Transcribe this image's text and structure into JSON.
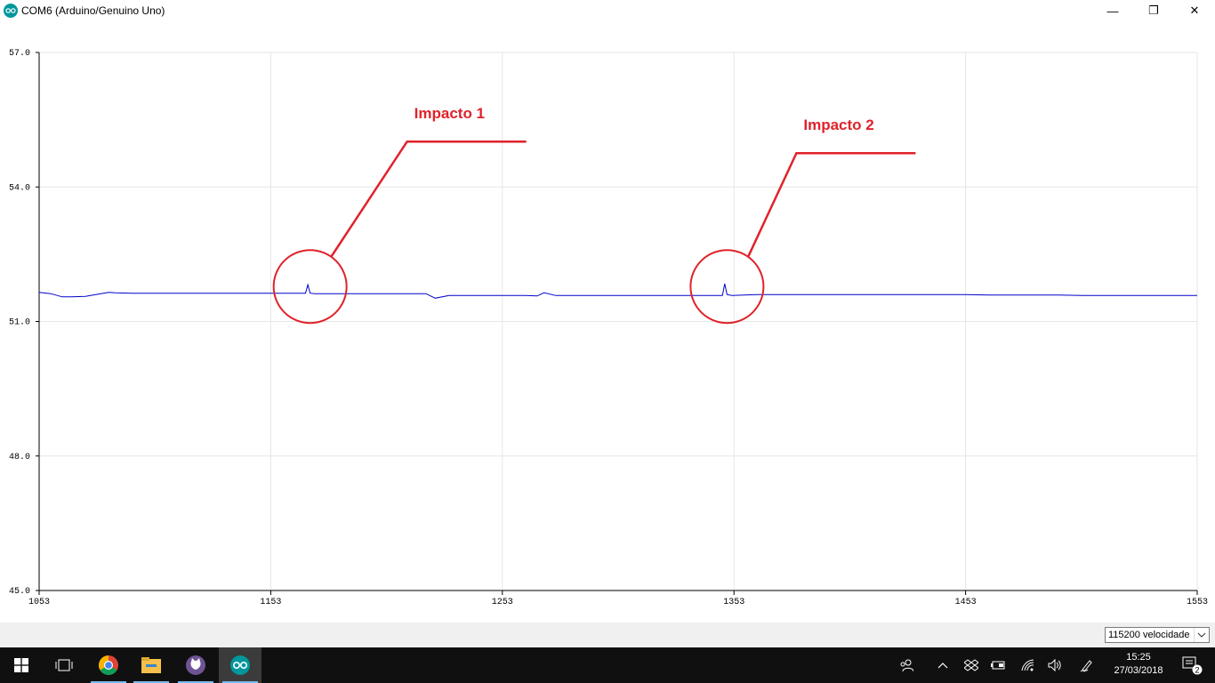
{
  "window": {
    "title": "COM6 (Arduino/Genuino Uno)",
    "minimize_glyph": "—",
    "restore_glyph": "❐",
    "close_glyph": "✕"
  },
  "plot": {
    "yticks": [
      "57.0",
      "54.0",
      "51.0",
      "48.0",
      "45.0"
    ],
    "xticks": [
      "1053",
      "1153",
      "1253",
      "1353",
      "1453",
      "1553"
    ],
    "line_color": "#0000cc",
    "annotation_color": "#e0222a",
    "annotations": [
      {
        "label": "Impacto 1"
      },
      {
        "label": "Impacto 2"
      }
    ]
  },
  "chart_data": {
    "type": "line",
    "xlim": [
      1053,
      1553
    ],
    "ylim": [
      45.0,
      57.0
    ],
    "yticks": [
      57.0,
      54.0,
      51.0,
      48.0,
      45.0
    ],
    "xticks": [
      1053,
      1153,
      1253,
      1353,
      1453,
      1553
    ],
    "grid": true,
    "series": [
      {
        "color": "#0000cc",
        "x": [
          1053,
          1058,
          1063,
          1067,
          1073,
          1083,
          1086,
          1093,
          1103,
          1113,
          1123,
          1133,
          1143,
          1153,
          1163,
          1168,
          1169,
          1170,
          1172,
          1183,
          1193,
          1203,
          1213,
          1220,
          1224,
          1230,
          1243,
          1253,
          1263,
          1268,
          1271,
          1276,
          1283,
          1293,
          1303,
          1313,
          1323,
          1333,
          1343,
          1348,
          1349,
          1350,
          1352,
          1363,
          1373,
          1383,
          1393,
          1403,
          1413,
          1423,
          1433,
          1443,
          1453,
          1463,
          1473,
          1483,
          1493,
          1503,
          1513,
          1523,
          1533,
          1543,
          1553
        ],
        "y": [
          51.65,
          51.62,
          51.55,
          51.55,
          51.56,
          51.65,
          51.64,
          51.63,
          51.63,
          51.63,
          51.63,
          51.63,
          51.63,
          51.63,
          51.63,
          51.63,
          51.82,
          51.63,
          51.62,
          51.62,
          51.62,
          51.62,
          51.62,
          51.62,
          51.52,
          51.58,
          51.58,
          51.58,
          51.58,
          51.57,
          51.64,
          51.58,
          51.58,
          51.58,
          51.58,
          51.58,
          51.58,
          51.58,
          51.58,
          51.58,
          51.84,
          51.6,
          51.58,
          51.6,
          51.6,
          51.6,
          51.6,
          51.6,
          51.6,
          51.6,
          51.6,
          51.6,
          51.6,
          51.59,
          51.59,
          51.59,
          51.59,
          51.58,
          51.58,
          51.58,
          51.58,
          51.58,
          51.58
        ]
      }
    ],
    "annotations": [
      {
        "text": "Impacto 1",
        "x": 1170,
        "y": 51.7
      },
      {
        "text": "Impacto 2",
        "x": 1350,
        "y": 51.7
      }
    ]
  },
  "baud": {
    "selected": "115200 velocidade"
  },
  "taskbar": {
    "start_icon": "windows-logo-icon",
    "task_view_icon": "task-view-icon",
    "apps": [
      "chrome-icon",
      "file-explorer-icon",
      "github-desktop-icon",
      "arduino-icon"
    ],
    "tray_icons": [
      "people-icon",
      "chevron-up-icon",
      "dropbox-icon",
      "battery-icon",
      "wifi-icon",
      "volume-icon",
      "pen-icon"
    ],
    "time": "15:25",
    "date": "27/03/2018",
    "notification_count": "2",
    "brand_teal": "#00979c",
    "highlight": "#76b9ed"
  }
}
